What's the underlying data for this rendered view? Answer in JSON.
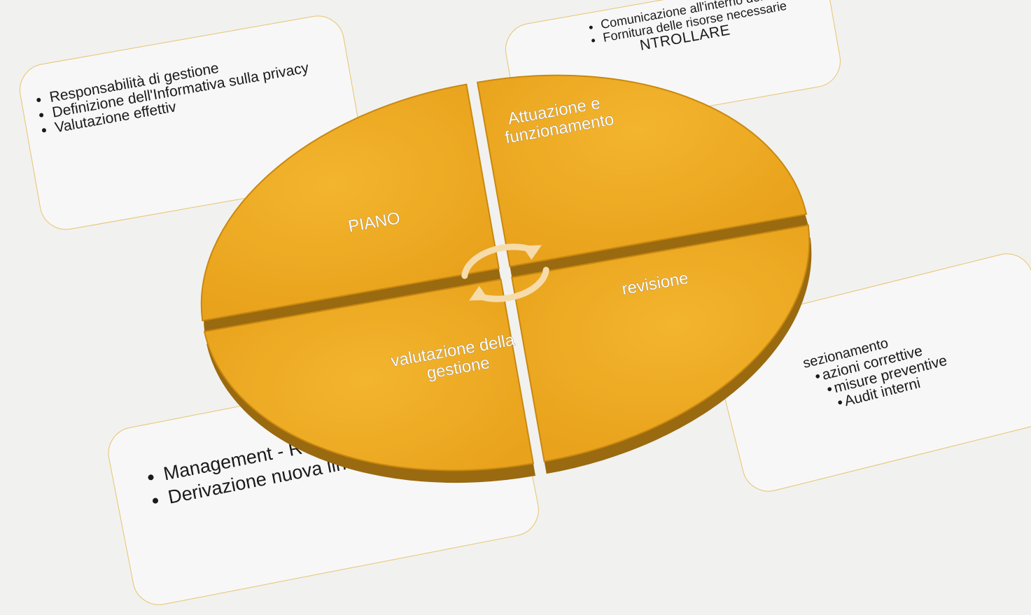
{
  "diagram": {
    "segments": [
      {
        "label": "PIANO"
      },
      {
        "label_lines": [
          "Attuazione e",
          "funzionamento"
        ]
      },
      {
        "label_lines": [
          "valutazione della",
          "gestione"
        ]
      },
      {
        "label": "revisione"
      }
    ],
    "cards": {
      "top_left": {
        "items": [
          "Responsabilità di gestione",
          "Definizione dell'Informativa sulla privacy",
          "Valutazione effettiv"
        ]
      },
      "top_right": {
        "items": [
          "Comunicazione all'interno dell'azienda",
          "Fornitura delle risorse necessarie"
        ],
        "extra": "NTROLLARE"
      },
      "bottom_right": {
        "first": "sezionamento",
        "items": [
          "azioni correttive",
          "misure preventive",
          "Audit interni"
        ]
      },
      "bottom_left": {
        "items": [
          "Management - Review",
          "Derivazione nuova linea"
        ]
      }
    },
    "cycle_icon": "cycle-arrows-icon",
    "colors": {
      "segment": "#f0ae26",
      "segment_dark": "#9a6a10",
      "card_border": "#e8c46c",
      "background": "#f1f1f0"
    }
  }
}
